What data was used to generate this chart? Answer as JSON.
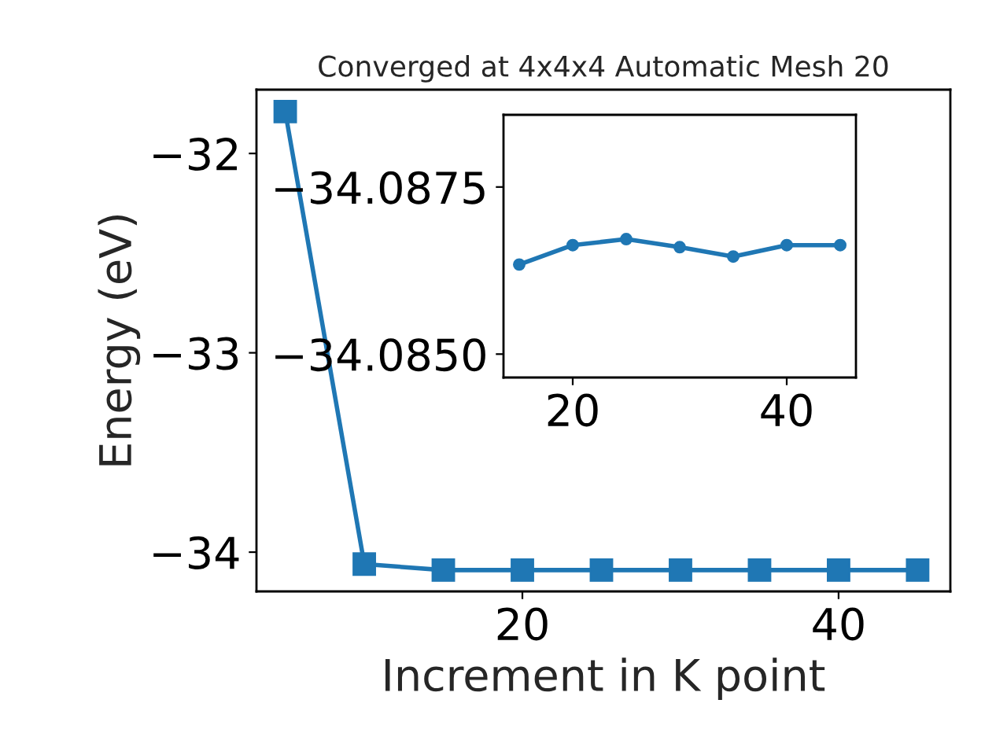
{
  "chart_data": [
    {
      "type": "line",
      "title": "Converged at 4x4x4 Automatic Mesh 20",
      "xlabel": "Increment in K point",
      "ylabel": "Energy (eV)",
      "x": [
        5,
        10,
        15,
        20,
        25,
        30,
        35,
        40,
        45
      ],
      "series": [
        {
          "color": "#1f77b4",
          "values": [
            -31.79,
            -34.06,
            -34.09,
            -34.09,
            -34.09,
            -34.09,
            -34.09,
            -34.09,
            -34.09
          ]
        }
      ],
      "xlim": [
        3.18,
        47.07
      ],
      "ylim": [
        -34.197,
        -31.68
      ],
      "xticks": [
        20,
        40
      ],
      "yticks": [
        -34,
        -33,
        -32
      ],
      "marker": "square",
      "line_style": "solid",
      "grid": false,
      "legend": false
    },
    {
      "type": "line",
      "x": [
        15,
        20,
        25,
        30,
        35,
        40,
        45
      ],
      "series": [
        {
          "color": "#1f77b4",
          "values": [
            -34.08634,
            -34.08663,
            -34.08672,
            -34.0866,
            -34.08646,
            -34.08663,
            -34.08663
          ]
        }
      ],
      "xlim": [
        13.53,
        46.47
      ],
      "ylim": [
        -34.08465,
        -34.08858
      ],
      "xticks": [
        20,
        40
      ],
      "yticks": [
        {
          "value": -34.0875,
          "label": "−34.0875"
        },
        {
          "value": -34.085,
          "label": "−34.0850"
        }
      ],
      "marker": "circle",
      "line_style": "solid",
      "grid": false,
      "legend": false
    }
  ]
}
